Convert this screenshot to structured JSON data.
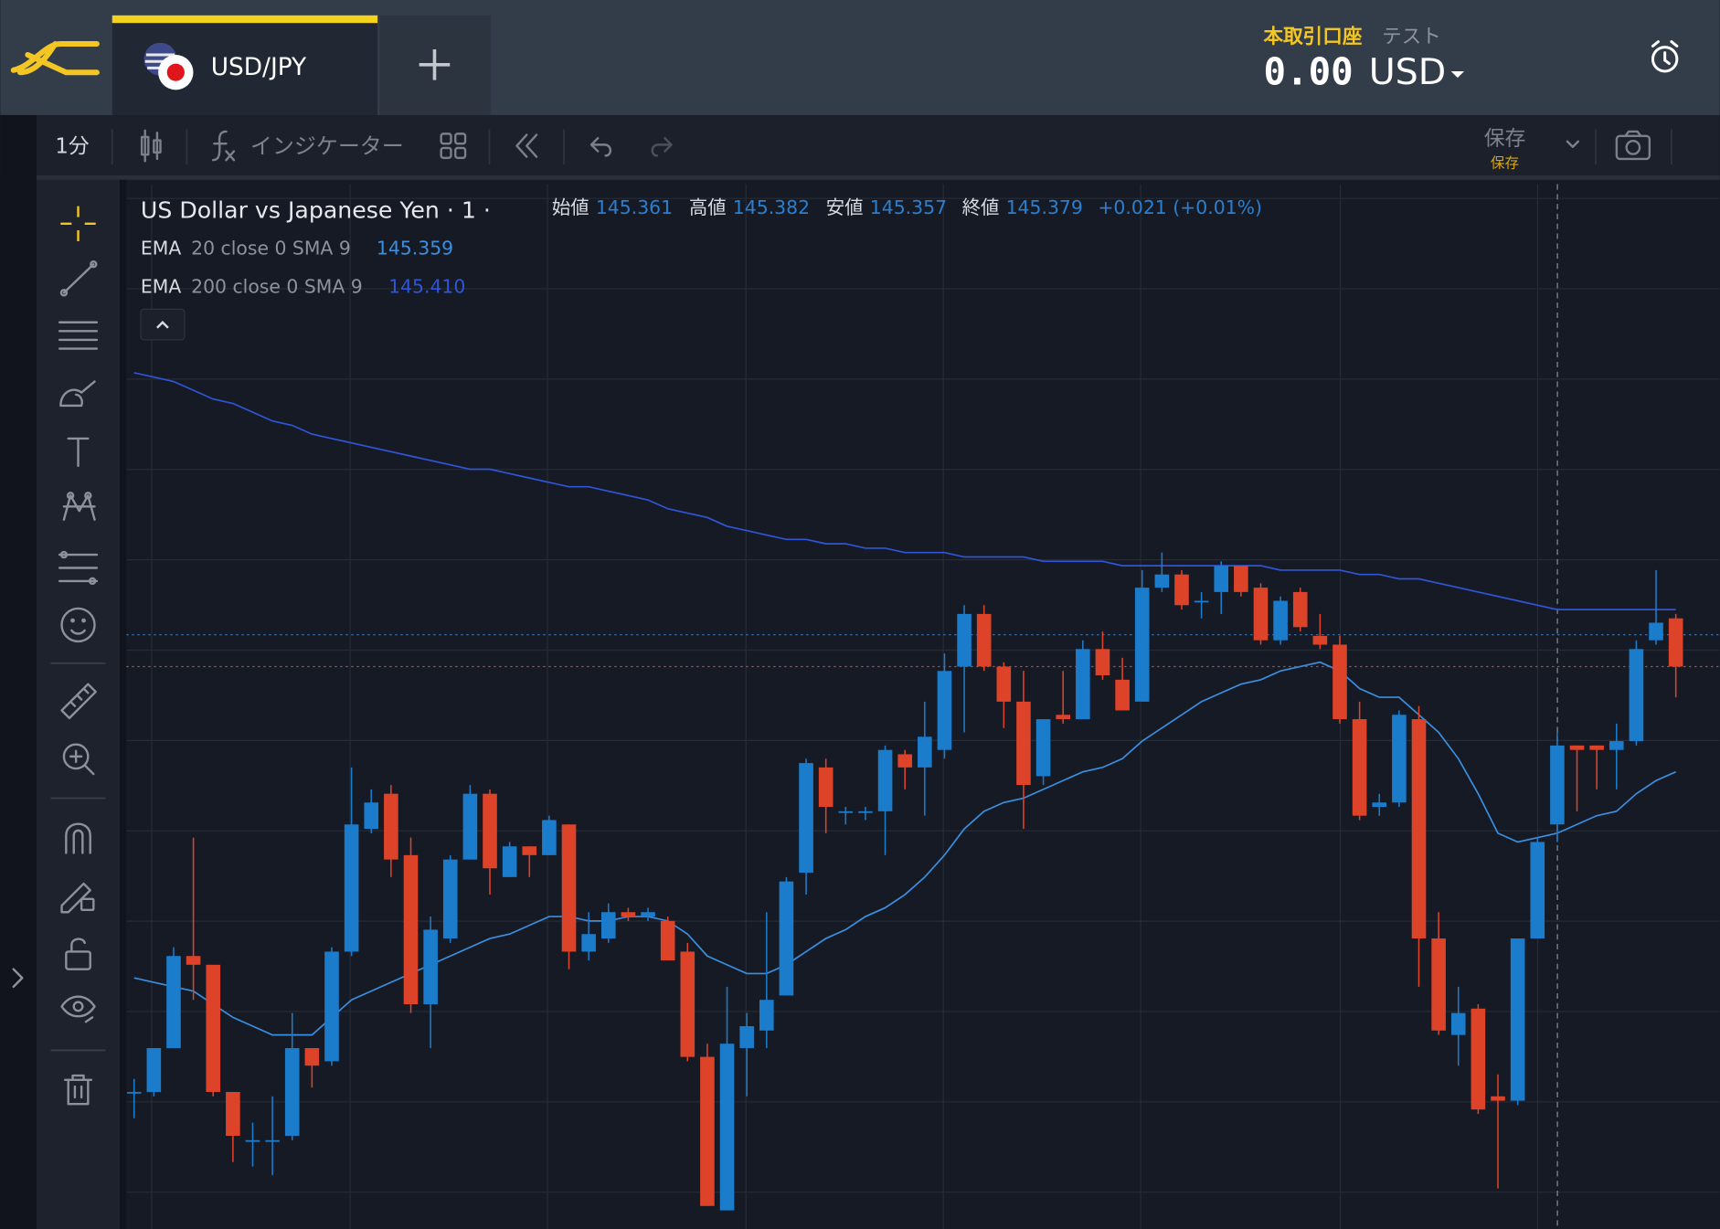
{
  "header": {
    "symbol": "USD/JPY",
    "account_type": "本取引口座",
    "account_mode": "テスト",
    "balance_amount": "0.00",
    "balance_currency": "USD"
  },
  "toolbar": {
    "interval": "1分",
    "indicators": "インジケーター",
    "save": "保存",
    "save_sub": "保存"
  },
  "legend": {
    "title": "US Dollar vs Japanese Yen · 1 ·",
    "open_label": "始値",
    "open": "145.361",
    "high_label": "高値",
    "high": "145.382",
    "low_label": "安値",
    "low": "145.357",
    "close_label": "終値",
    "close": "145.379",
    "change": "+0.021 (+0.01%)"
  },
  "chart_data": {
    "type": "candlestick",
    "up_color": "#1b7ccc",
    "down_color": "#dd4328",
    "ylim": [
      145.27,
      145.51
    ],
    "open": [
      145.3,
      145.3,
      145.31,
      145.331,
      145.329,
      145.3,
      145.289,
      145.289,
      145.29,
      145.31,
      145.307,
      145.332,
      145.36,
      145.368,
      145.354,
      145.32,
      145.335,
      145.353,
      145.368,
      145.349,
      145.356,
      145.354,
      145.361,
      145.332,
      145.335,
      145.341,
      145.34,
      145.339,
      145.332,
      145.308,
      145.273,
      145.31,
      145.314,
      145.322,
      145.35,
      145.374,
      145.364,
      145.364,
      145.364,
      145.377,
      145.374,
      145.378,
      145.397,
      145.409,
      145.397,
      145.389,
      145.372,
      145.386,
      145.385,
      145.401,
      145.394,
      145.389,
      145.415,
      145.418,
      145.412,
      145.414,
      145.42,
      145.415,
      145.403,
      145.414,
      145.404,
      145.402,
      145.385,
      145.365,
      145.366,
      145.385,
      145.335,
      145.313,
      145.319,
      145.299,
      145.298,
      145.335,
      145.361,
      145.379,
      145.379,
      145.378,
      145.38,
      145.403,
      145.408
    ],
    "high": [
      145.303,
      145.31,
      145.333,
      145.358,
      145.329,
      145.3,
      145.293,
      145.299,
      145.318,
      145.31,
      145.333,
      145.374,
      145.369,
      145.37,
      145.358,
      145.34,
      145.354,
      145.37,
      145.369,
      145.357,
      145.356,
      145.363,
      145.361,
      145.341,
      145.343,
      145.342,
      145.342,
      145.34,
      145.334,
      145.311,
      145.324,
      145.318,
      145.341,
      145.349,
      145.376,
      145.376,
      145.365,
      145.365,
      145.379,
      145.378,
      145.389,
      145.4,
      145.411,
      145.411,
      145.398,
      145.396,
      145.385,
      145.396,
      145.403,
      145.405,
      145.399,
      145.419,
      145.423,
      145.419,
      145.414,
      145.421,
      145.42,
      145.416,
      145.413,
      145.415,
      145.409,
      145.404,
      145.389,
      145.368,
      145.387,
      145.388,
      145.341,
      145.324,
      145.32,
      145.304,
      145.335,
      145.358,
      145.382,
      145.379,
      145.379,
      145.384,
      145.403,
      145.419,
      145.409
    ],
    "low": [
      145.294,
      145.299,
      145.31,
      145.321,
      145.299,
      145.284,
      145.283,
      145.281,
      145.289,
      145.301,
      145.306,
      145.331,
      145.359,
      145.349,
      145.318,
      145.31,
      145.334,
      145.353,
      145.345,
      145.349,
      145.349,
      145.354,
      145.328,
      145.33,
      145.334,
      145.339,
      145.339,
      145.33,
      145.307,
      145.274,
      145.273,
      145.299,
      145.31,
      145.322,
      145.345,
      145.359,
      145.361,
      145.362,
      145.354,
      145.369,
      145.363,
      145.376,
      145.382,
      145.396,
      145.383,
      145.36,
      145.37,
      145.384,
      145.385,
      145.394,
      145.387,
      145.389,
      145.414,
      145.41,
      145.408,
      145.409,
      145.413,
      145.402,
      145.402,
      145.405,
      145.401,
      145.384,
      145.362,
      145.363,
      145.365,
      145.324,
      145.313,
      145.306,
      145.295,
      145.278,
      145.297,
      145.335,
      145.357,
      145.364,
      145.369,
      145.369,
      145.379,
      145.402,
      145.39
    ],
    "close": [
      145.3,
      145.31,
      145.331,
      145.329,
      145.3,
      145.29,
      145.289,
      145.289,
      145.31,
      145.306,
      145.332,
      145.361,
      145.366,
      145.353,
      145.32,
      145.337,
      145.353,
      145.368,
      145.351,
      145.356,
      145.354,
      145.362,
      145.332,
      145.336,
      145.341,
      145.34,
      145.341,
      145.33,
      145.308,
      145.274,
      145.311,
      145.315,
      145.321,
      145.348,
      145.375,
      145.365,
      145.364,
      145.364,
      145.378,
      145.374,
      145.381,
      145.396,
      145.409,
      145.397,
      145.389,
      145.37,
      145.385,
      145.385,
      145.401,
      145.395,
      145.387,
      145.415,
      145.418,
      145.411,
      145.412,
      145.42,
      145.414,
      145.403,
      145.412,
      145.406,
      145.402,
      145.385,
      145.363,
      145.366,
      145.386,
      145.335,
      145.314,
      145.318,
      145.296,
      145.298,
      145.335,
      145.357,
      145.379,
      145.378,
      145.378,
      145.38,
      145.401,
      145.407,
      145.397
    ],
    "indicators": [
      {
        "name": "EMA",
        "params": "20 close 0 SMA 9",
        "value_label": "145.359",
        "color": "#3a8fe0",
        "values": [
          145.326,
          145.325,
          145.324,
          145.323,
          145.32,
          145.317,
          145.315,
          145.313,
          145.313,
          145.313,
          145.317,
          145.321,
          145.323,
          145.325,
          145.327,
          145.329,
          145.331,
          145.333,
          145.335,
          145.336,
          145.338,
          145.34,
          145.34,
          145.339,
          145.339,
          145.34,
          145.34,
          145.339,
          145.336,
          145.331,
          145.329,
          145.327,
          145.327,
          145.329,
          145.332,
          145.335,
          145.337,
          145.34,
          145.342,
          145.345,
          145.349,
          145.354,
          145.36,
          145.364,
          145.366,
          145.367,
          145.369,
          145.371,
          145.373,
          145.374,
          145.376,
          145.38,
          145.383,
          145.386,
          145.389,
          145.391,
          145.393,
          145.394,
          145.396,
          145.397,
          145.398,
          145.396,
          145.392,
          145.39,
          145.39,
          145.386,
          145.382,
          145.376,
          145.368,
          145.359,
          145.357,
          145.358,
          145.359,
          145.361,
          145.363,
          145.364,
          145.368,
          145.371,
          145.373
        ]
      },
      {
        "name": "EMA",
        "params": "200 close 0 SMA 9",
        "value_label": "145.410",
        "color": "#2f55d8",
        "values": [
          145.464,
          145.463,
          145.462,
          145.46,
          145.458,
          145.457,
          145.455,
          145.453,
          145.452,
          145.45,
          145.449,
          145.448,
          145.447,
          145.446,
          145.445,
          145.444,
          145.443,
          145.442,
          145.442,
          145.441,
          145.44,
          145.439,
          145.438,
          145.438,
          145.437,
          145.436,
          145.435,
          145.433,
          145.432,
          145.431,
          145.429,
          145.428,
          145.427,
          145.426,
          145.426,
          145.425,
          145.425,
          145.424,
          145.424,
          145.423,
          145.423,
          145.423,
          145.422,
          145.422,
          145.422,
          145.422,
          145.421,
          145.421,
          145.421,
          145.421,
          145.42,
          145.42,
          145.42,
          145.42,
          145.42,
          145.42,
          145.42,
          145.42,
          145.419,
          145.419,
          145.419,
          145.419,
          145.418,
          145.418,
          145.417,
          145.417,
          145.416,
          145.415,
          145.414,
          145.413,
          145.412,
          145.411,
          145.41,
          145.41,
          145.41,
          145.41,
          145.41,
          145.41,
          145.41
        ]
      }
    ]
  }
}
